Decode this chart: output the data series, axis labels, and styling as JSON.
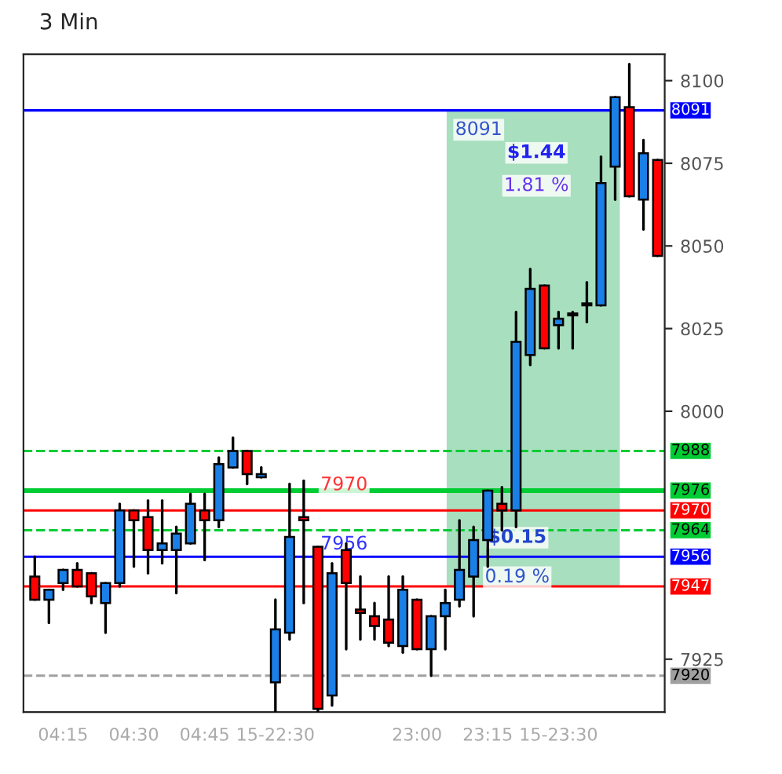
{
  "chart_data": {
    "type": "candlestick",
    "title": "3 Min",
    "categories": [
      null,
      null,
      "04:15",
      null,
      null,
      null,
      null,
      "04:30",
      null,
      null,
      null,
      null,
      "04:45",
      null,
      null,
      null,
      null,
      "15-22:30",
      null,
      null,
      null,
      null,
      null,
      null,
      null,
      null,
      null,
      "23:00",
      null,
      null,
      null,
      null,
      "23:15",
      null,
      null,
      null,
      null,
      "15-23:30",
      null,
      null,
      null,
      null,
      null,
      null,
      null
    ],
    "ohlc": [
      [
        7950,
        7956,
        7943,
        7943
      ],
      [
        7943,
        7946,
        7936,
        7946
      ],
      [
        7948,
        7952,
        7946,
        7952
      ],
      [
        7952,
        7954,
        7947,
        7947
      ],
      [
        7951,
        7951,
        7942,
        7944
      ],
      [
        7942,
        7948,
        7933,
        7948
      ],
      [
        7948,
        7972,
        7947,
        7970
      ],
      [
        7970,
        7970,
        7953,
        7967
      ],
      [
        7968,
        7973,
        7951,
        7958
      ],
      [
        7958,
        7973,
        7954,
        7960
      ],
      [
        7958,
        7965,
        7945,
        7963
      ],
      [
        7960,
        7975,
        7960,
        7972
      ],
      [
        7970,
        7975,
        7955,
        7967
      ],
      [
        7967,
        7986,
        7965,
        7984
      ],
      [
        7983,
        7992,
        7983,
        7988
      ],
      [
        7988,
        7988,
        7978,
        7981
      ],
      [
        7980,
        7983,
        7980,
        7981
      ],
      [
        7918,
        7943,
        7908,
        7934
      ],
      [
        7933,
        7978,
        7931,
        7962
      ],
      [
        7968,
        7979,
        7942,
        7967
      ],
      [
        7959,
        7959,
        7908,
        7910
      ],
      [
        7914,
        7954,
        7911,
        7951
      ],
      [
        7958,
        7960,
        7928,
        7948
      ],
      [
        7940,
        7950,
        7931,
        7939
      ],
      [
        7938,
        7942,
        7931,
        7935
      ],
      [
        7937,
        7950,
        7929,
        7930
      ],
      [
        7929,
        7950,
        7927,
        7946
      ],
      [
        7943,
        7943,
        7928,
        7928
      ],
      [
        7928,
        7938,
        7920,
        7938
      ],
      [
        7938,
        7946,
        7928,
        7942
      ],
      [
        7943,
        7967,
        7941,
        7952
      ],
      [
        7950,
        7965,
        7938,
        7961
      ],
      [
        7961,
        7976,
        7953,
        7976
      ],
      [
        7972,
        7977,
        7964,
        7970
      ],
      [
        7970,
        8030,
        7965,
        8021
      ],
      [
        8017,
        8043,
        8014,
        8037
      ],
      [
        8038,
        8038,
        8019,
        8019
      ],
      [
        8026,
        8030,
        8019,
        8028
      ],
      [
        8029,
        8030,
        8019,
        8029
      ],
      [
        8032,
        8039,
        8027,
        8032
      ],
      [
        8032,
        8077,
        8032,
        8069
      ],
      [
        8074,
        8095,
        8064,
        8095
      ],
      [
        8092,
        8105,
        8065,
        8065
      ],
      [
        8064,
        8082,
        8055,
        8078
      ],
      [
        8076,
        8076,
        8047,
        8047
      ]
    ],
    "colors": [
      "#ff0000",
      "#1a7fe6",
      "#1a7fe6",
      "#ff0000",
      "#ff0000",
      "#1a7fe6",
      "#1a7fe6",
      "#ff0000",
      "#ff0000",
      "#1a7fe6",
      "#1a7fe6",
      "#1a7fe6",
      "#ff0000",
      "#1a7fe6",
      "#1a7fe6",
      "#ff0000",
      "#1a7fe6",
      "#1a7fe6",
      "#1a7fe6",
      "#ff0000",
      "#ff0000",
      "#1a7fe6",
      "#ff0000",
      "#ff0000",
      "#ff0000",
      "#ff0000",
      "#1a7fe6",
      "#ff0000",
      "#1a7fe6",
      "#1a7fe6",
      "#1a7fe6",
      "#1a7fe6",
      "#1a7fe6",
      "#ff0000",
      "#1a7fe6",
      "#1a7fe6",
      "#ff0000",
      "#1a7fe6",
      "#1a7fe6",
      "#1a7fe6",
      "#1a7fe6",
      "#1a7fe6",
      "#ff0000",
      "#1a7fe6",
      "#ff0000"
    ],
    "ylim": [
      7909,
      8108
    ],
    "yticks": [
      7925,
      8000,
      8025,
      8050,
      8075,
      8100
    ],
    "ref_lines": [
      {
        "axis": "y",
        "value": 7988,
        "label": "7988",
        "color": "#00cc33",
        "line_style": "dashed"
      },
      {
        "axis": "y",
        "value": 7976,
        "label": "7976",
        "color": "#00cc33",
        "line_style": "solid"
      },
      {
        "axis": "y",
        "value": 7970,
        "label": "7970",
        "color": "#ff0000",
        "line_style": "solid"
      },
      {
        "axis": "y",
        "value": 7964,
        "label": "7964",
        "color": "#00cc33",
        "line_style": "dashed"
      },
      {
        "axis": "y",
        "value": 7956,
        "label": "7956",
        "color": "#0000ff",
        "line_style": "solid"
      },
      {
        "axis": "y",
        "value": 7947,
        "label": "7947",
        "color": "#ff0000",
        "line_style": "solid"
      },
      {
        "axis": "y",
        "value": 7920,
        "label": "7920",
        "color": "#a0a0a0",
        "line_style": "dashed"
      },
      {
        "axis": "y",
        "value": 8091,
        "label": "8091",
        "color": "#0000ff",
        "line_style": "solid"
      }
    ],
    "bands": [
      {
        "axis": "y",
        "from": 7947,
        "to": 8091,
        "color": "#9fdcb8"
      }
    ],
    "annotations": [
      "7970",
      "7956",
      "8091",
      "$0.15",
      "0.19 %",
      "$1.44",
      "1.81 %"
    ],
    "grid": false,
    "legend": false
  }
}
